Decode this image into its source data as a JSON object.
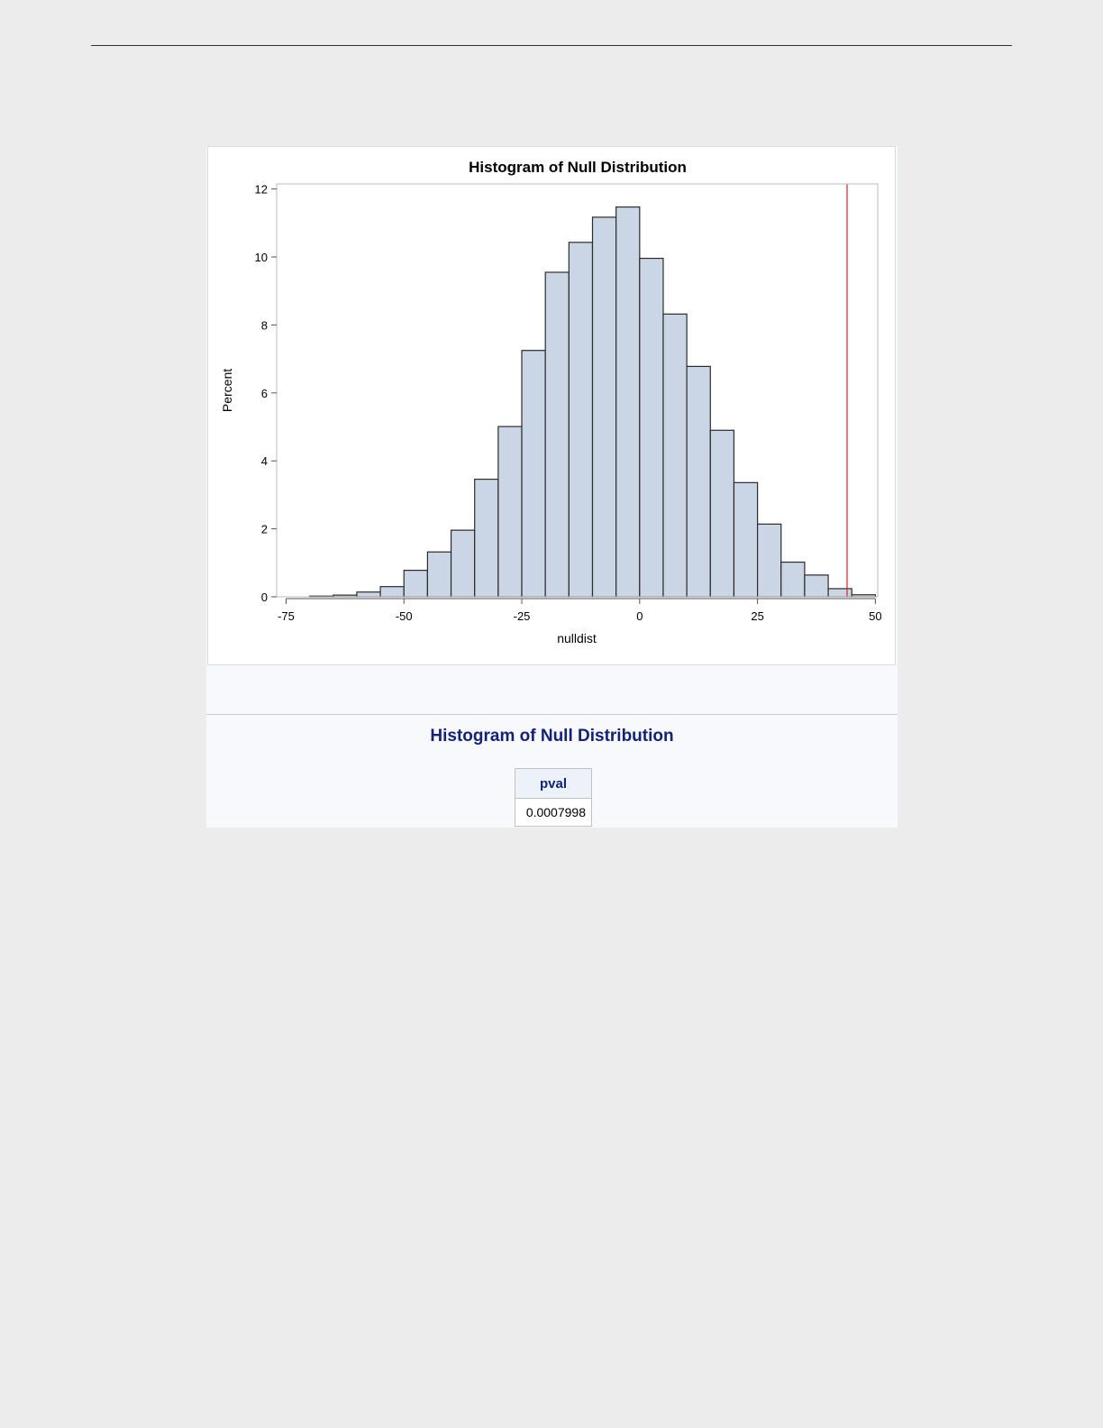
{
  "colors": {
    "bar_fill": "#cad5e5",
    "bar_stroke": "#2b2b2b",
    "reference_line": "#e02020",
    "table_title": "#112277"
  },
  "chart_data": {
    "type": "bar",
    "title": "Histogram of Null Distribution",
    "xlabel": "nulldist",
    "ylabel": "Percent",
    "xlim": [
      -77,
      50.5
    ],
    "ylim": [
      0,
      12.15
    ],
    "x_ticks": [
      -75,
      -50,
      -25,
      0,
      25,
      50
    ],
    "y_ticks": [
      0,
      2,
      4,
      6,
      8,
      10,
      12
    ],
    "grid": false,
    "bin_width": 5,
    "bin_left_edges": [
      -70,
      -65,
      -60,
      -55,
      -50,
      -45,
      -40,
      -35,
      -30,
      -25,
      -20,
      -15,
      -10,
      -5,
      0,
      5,
      10,
      15,
      20,
      25,
      30,
      35,
      40,
      45
    ],
    "values": [
      0.02,
      0.05,
      0.14,
      0.3,
      0.78,
      1.32,
      1.96,
      3.46,
      5.01,
      7.25,
      9.55,
      10.43,
      11.17,
      11.47,
      9.96,
      8.32,
      6.78,
      4.9,
      3.36,
      2.14,
      1.02,
      0.64,
      0.24,
      0.06
    ],
    "reference_line": {
      "axis": "x",
      "value": 44
    }
  },
  "table": {
    "title": "Histogram of Null Distribution",
    "header": "pval",
    "value": "0.0007998"
  }
}
